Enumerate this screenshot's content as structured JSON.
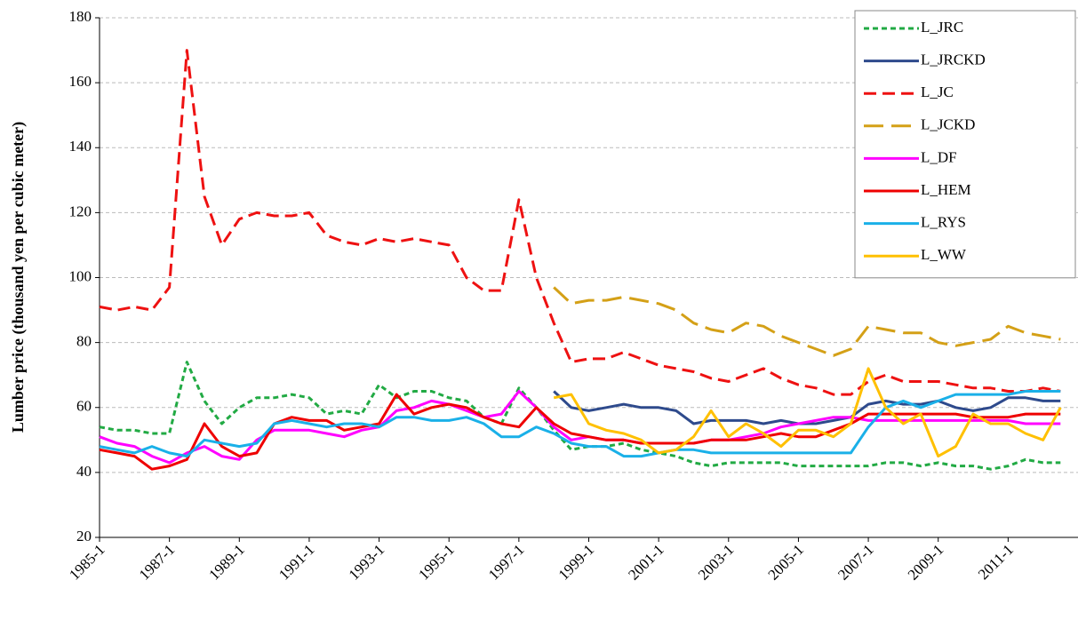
{
  "chart_data": {
    "type": "line",
    "y_label": "Lumber price (thousand yen per cubic meter)",
    "categories": [
      "1985-1",
      null,
      null,
      null,
      "1987-1",
      null,
      null,
      null,
      "1989-1",
      null,
      null,
      null,
      "1991-1",
      null,
      null,
      null,
      "1993-1",
      null,
      null,
      null,
      "1995-1",
      null,
      null,
      null,
      "1997-1",
      null,
      null,
      null,
      "1999-1",
      null,
      null,
      null,
      "2001-1",
      null,
      null,
      null,
      "2003-1",
      null,
      null,
      null,
      "2005-1",
      null,
      null,
      null,
      "2007-1",
      null,
      null,
      null,
      "2009-1",
      null,
      null,
      null,
      "2011-1",
      null,
      null,
      null
    ],
    "ylim": [
      20,
      180
    ],
    "yticks": [
      20,
      40,
      60,
      80,
      100,
      120,
      140,
      160,
      180
    ],
    "grid": true,
    "legend": "upper right",
    "series": [
      {
        "name": "L_JRC",
        "color": "#22aa44",
        "dash": "short",
        "values": [
          54,
          53,
          53,
          52,
          52,
          74,
          62,
          55,
          60,
          63,
          63,
          64,
          63,
          58,
          59,
          58,
          67,
          63,
          65,
          65,
          63,
          62,
          57,
          55,
          66,
          60,
          53,
          47,
          48,
          48,
          49,
          47,
          46,
          45,
          43,
          42,
          43,
          43,
          43,
          43,
          42,
          42,
          42,
          42,
          42,
          43,
          43,
          42,
          43,
          42,
          42,
          41,
          42,
          44,
          43,
          43
        ]
      },
      {
        "name": "L_JRCKD",
        "color": "#2e4a8c",
        "dash": "solid",
        "values": [
          null,
          null,
          null,
          null,
          null,
          null,
          null,
          null,
          null,
          null,
          null,
          null,
          null,
          null,
          null,
          null,
          null,
          null,
          null,
          null,
          null,
          null,
          null,
          null,
          null,
          null,
          65,
          60,
          59,
          60,
          61,
          60,
          60,
          59,
          55,
          56,
          56,
          56,
          55,
          56,
          55,
          55,
          56,
          57,
          61,
          62,
          61,
          61,
          62,
          60,
          59,
          60,
          63,
          63,
          62,
          62
        ]
      },
      {
        "name": "L_JC",
        "color": "#ee1111",
        "dash": "medium",
        "values": [
          91,
          90,
          91,
          90,
          97,
          170,
          125,
          110,
          118,
          120,
          119,
          119,
          120,
          113,
          111,
          110,
          112,
          111,
          112,
          111,
          110,
          100,
          96,
          96,
          124,
          100,
          86,
          74,
          75,
          75,
          77,
          75,
          73,
          72,
          71,
          69,
          68,
          70,
          72,
          69,
          67,
          66,
          64,
          64,
          68,
          70,
          68,
          68,
          68,
          67,
          66,
          66,
          65,
          65,
          66,
          65
        ]
      },
      {
        "name": "L_JCKD",
        "color": "#d4a017",
        "dash": "long",
        "values": [
          null,
          null,
          null,
          null,
          null,
          null,
          null,
          null,
          null,
          null,
          null,
          null,
          null,
          null,
          null,
          null,
          null,
          null,
          null,
          null,
          null,
          null,
          null,
          null,
          null,
          null,
          97,
          92,
          93,
          93,
          94,
          93,
          92,
          90,
          86,
          84,
          83,
          86,
          85,
          82,
          80,
          78,
          76,
          78,
          85,
          84,
          83,
          83,
          80,
          79,
          80,
          81,
          85,
          83,
          82,
          81
        ]
      },
      {
        "name": "L_DF",
        "color": "#ff00ff",
        "dash": "solid",
        "values": [
          51,
          49,
          48,
          45,
          43,
          46,
          48,
          45,
          44,
          50,
          53,
          53,
          53,
          52,
          51,
          53,
          54,
          59,
          60,
          62,
          61,
          59,
          57,
          58,
          65,
          60,
          54,
          50,
          51,
          50,
          50,
          49,
          49,
          49,
          49,
          50,
          50,
          51,
          52,
          54,
          55,
          56,
          57,
          57,
          56,
          56,
          56,
          56,
          56,
          56,
          56,
          56,
          56,
          55,
          55,
          55
        ]
      },
      {
        "name": "L_HEM",
        "color": "#ee0000",
        "dash": "solid",
        "values": [
          47,
          46,
          45,
          41,
          42,
          44,
          55,
          48,
          45,
          46,
          55,
          57,
          56,
          56,
          53,
          54,
          55,
          64,
          58,
          60,
          61,
          60,
          57,
          55,
          54,
          60,
          55,
          52,
          51,
          50,
          50,
          49,
          49,
          49,
          49,
          50,
          50,
          50,
          51,
          52,
          51,
          51,
          53,
          55,
          58,
          58,
          58,
          58,
          58,
          58,
          57,
          57,
          57,
          58,
          58,
          58
        ]
      },
      {
        "name": "L_RYS",
        "color": "#1ab0e8",
        "dash": "solid",
        "values": [
          48,
          47,
          46,
          48,
          46,
          45,
          50,
          49,
          48,
          49,
          55,
          56,
          55,
          54,
          55,
          55,
          54,
          57,
          57,
          56,
          56,
          57,
          55,
          51,
          51,
          54,
          52,
          49,
          48,
          48,
          45,
          45,
          46,
          47,
          47,
          46,
          46,
          46,
          46,
          46,
          46,
          46,
          46,
          46,
          54,
          60,
          62,
          60,
          62,
          64,
          64,
          64,
          64,
          65,
          65,
          65
        ]
      },
      {
        "name": "L_WW",
        "color": "#ffc000",
        "dash": "solid",
        "values": [
          null,
          null,
          null,
          null,
          null,
          null,
          null,
          null,
          null,
          null,
          null,
          null,
          null,
          null,
          null,
          null,
          null,
          null,
          null,
          null,
          null,
          null,
          null,
          null,
          null,
          null,
          63,
          64,
          55,
          53,
          52,
          50,
          46,
          47,
          51,
          59,
          51,
          55,
          52,
          48,
          53,
          53,
          51,
          55,
          72,
          60,
          55,
          58,
          45,
          48,
          58,
          55,
          55,
          52,
          50,
          60
        ]
      }
    ]
  }
}
